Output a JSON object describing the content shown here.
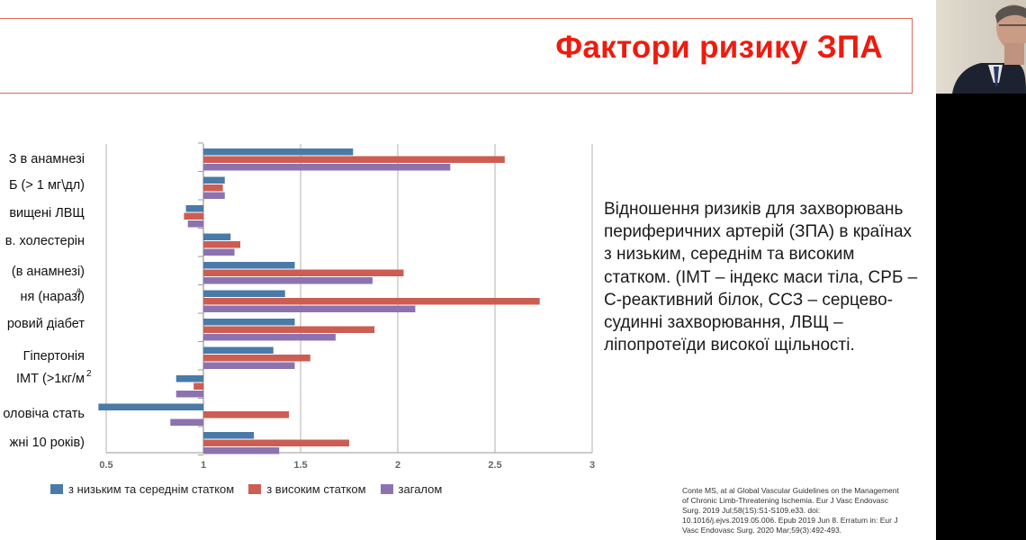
{
  "slide": {
    "title": "Фактори ризику ЗПА",
    "description": "Відношення ризиків для захворювань периферичних артерій (ЗПА) в країнах з низьким, середнім та високим статком. (ІМТ – індекс маси тіла, СРБ – С-реактивний білок, ССЗ – серцево-судинні захворювання, ЛВЩ – ліпопротеїди високої щільності.",
    "citation": "Conte MS, at al Global Vascular Guidelines on the Management of Chronic Limb-Threatening Ischemia. Eur J Vasc Endovasc Surg. 2019 Jul;58(1S):S1-S109.e33.  doi: 10.1016/j.ejvs.2019.05.006.  Epub 2019 Jun 8. Erratum in: Eur J Vasc Endovasc Surg. 2020 Mar;59(3):492-493."
  },
  "chart_data": {
    "type": "bar",
    "orientation": "horizontal",
    "baseline": 1,
    "xlim": [
      0.5,
      3
    ],
    "xticks": [
      "0.5",
      "1",
      "1.5",
      "2",
      "2.5",
      "3"
    ],
    "categories": [
      "З в анамнезі",
      "Б  (> 1 мг\\дл)",
      "вищені ЛВЩ",
      "в. холестерін",
      "(в анамнезі)",
      "ня (наразі)",
      "ровий діабет",
      "Гіпертонія",
      "ІМТ (>1кг/м",
      "оловіча стать",
      "жні 10 років)"
    ],
    "series": [
      {
        "name": "з низьким та середнім статком",
        "color": "#4a7aa8",
        "values": [
          1.77,
          1.11,
          0.91,
          1.14,
          1.47,
          1.42,
          1.47,
          1.36,
          0.86,
          0.46,
          1.26
        ]
      },
      {
        "name": "з високим статком",
        "color": "#cd5d52",
        "values": [
          2.55,
          1.1,
          0.9,
          1.19,
          2.03,
          2.73,
          1.88,
          1.55,
          0.95,
          1.44,
          1.75
        ]
      },
      {
        "name": "загалом",
        "color": "#8c73b0",
        "values": [
          2.27,
          1.11,
          0.92,
          1.16,
          1.87,
          2.09,
          1.68,
          1.47,
          0.86,
          0.83,
          1.39
        ]
      }
    ],
    "grid": "vertical",
    "legend": "bottom"
  },
  "partial_marks": {
    "superscript_2": "2",
    "footnote_mark": "/)"
  },
  "colors": {
    "title": "#ee1b0f",
    "title_border": "#d96a5a"
  }
}
